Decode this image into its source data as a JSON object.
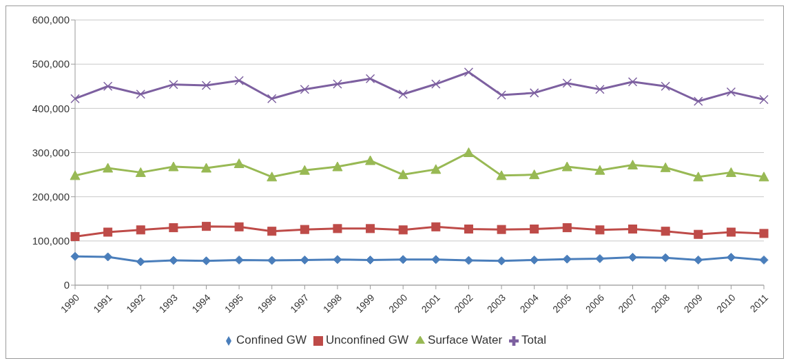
{
  "chart_data": {
    "type": "line",
    "categories": [
      "1990",
      "1991",
      "1992",
      "1993",
      "1994",
      "1995",
      "1996",
      "1997",
      "1998",
      "1999",
      "2000",
      "2001",
      "2002",
      "2003",
      "2004",
      "2005",
      "2006",
      "2007",
      "2008",
      "2009",
      "2010",
      "2011"
    ],
    "series": [
      {
        "name": "Confined GW",
        "color": "#4a7ebb",
        "marker": "diamond",
        "values": [
          65000,
          64000,
          53000,
          56000,
          55000,
          57000,
          56000,
          57000,
          58000,
          57000,
          58000,
          58000,
          56000,
          55000,
          57000,
          59000,
          60000,
          63000,
          62000,
          57000,
          63000,
          57000
        ]
      },
      {
        "name": "Unconfined GW",
        "color": "#be4b48",
        "marker": "square",
        "values": [
          110000,
          120000,
          125000,
          130000,
          133000,
          132000,
          122000,
          126000,
          128000,
          128000,
          125000,
          132000,
          127000,
          126000,
          127000,
          130000,
          125000,
          127000,
          122000,
          115000,
          120000,
          117000
        ]
      },
      {
        "name": "Surface Water",
        "color": "#98b954",
        "marker": "triangle",
        "values": [
          248000,
          265000,
          255000,
          268000,
          265000,
          275000,
          245000,
          260000,
          268000,
          282000,
          250000,
          262000,
          300000,
          248000,
          250000,
          268000,
          260000,
          272000,
          266000,
          245000,
          255000,
          245000
        ]
      },
      {
        "name": "Total",
        "color": "#7d60a0",
        "marker": "cross",
        "values": [
          422000,
          450000,
          432000,
          454000,
          452000,
          463000,
          422000,
          443000,
          455000,
          467000,
          432000,
          455000,
          482000,
          430000,
          435000,
          457000,
          443000,
          460000,
          450000,
          416000,
          437000,
          420000
        ]
      }
    ],
    "ylim": [
      0,
      600000
    ],
    "yticks": [
      0,
      {
        "value": 100000,
        "label": "100,000"
      },
      {
        "value": 200000,
        "label": "200,000"
      },
      {
        "value": 300000,
        "label": "300,000"
      },
      {
        "value": 400000,
        "label": "400,000"
      },
      {
        "value": 500000,
        "label": "500,000"
      },
      {
        "value": 600000,
        "label": "600,000"
      }
    ],
    "grid": "y",
    "legend": "bottom"
  }
}
